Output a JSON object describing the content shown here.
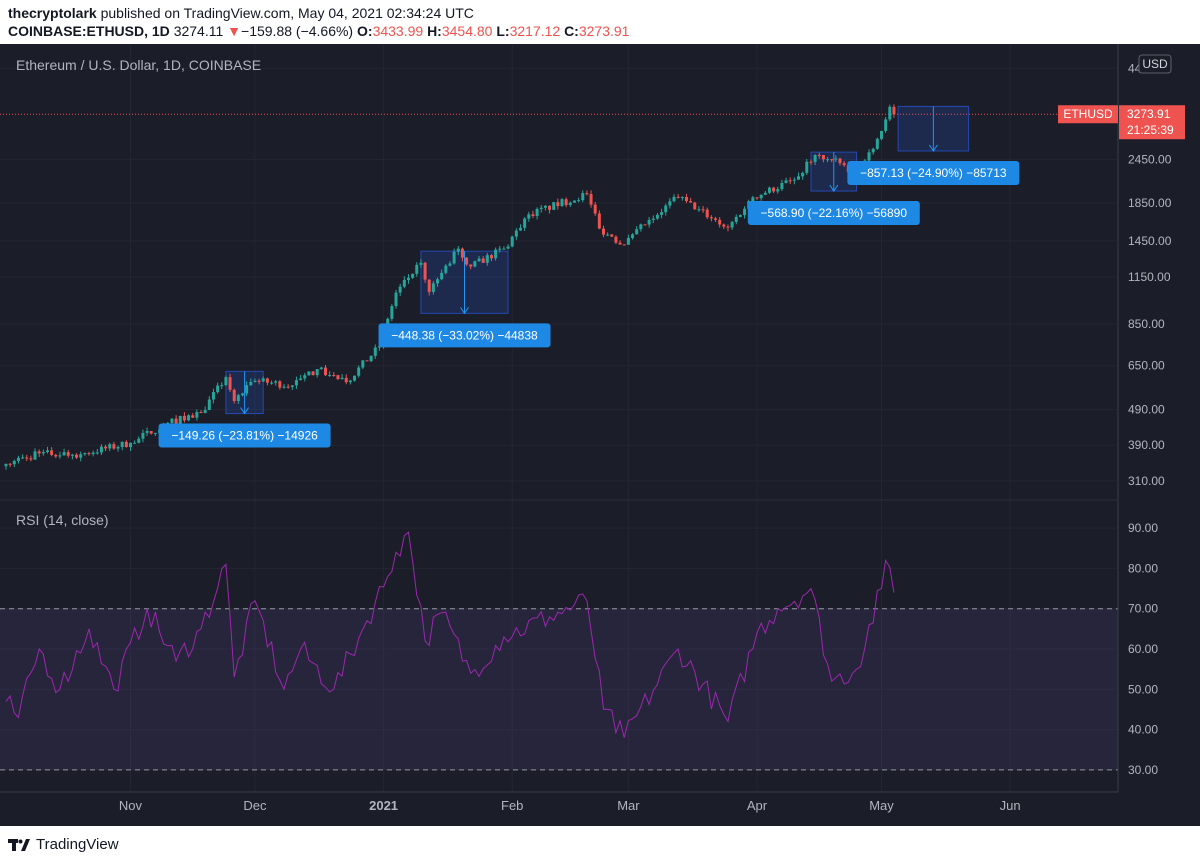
{
  "header": {
    "author": "thecryptolark",
    "published_text": " published on TradingView.com, May 04, 2021 02:34:24 UTC",
    "symbol": "COINBASE:ETHUSD, 1D",
    "last": "3274.11",
    "arrow": "▼",
    "change": "−159.88 (−4.66%)",
    "o_label": "O:",
    "o": "3433.99",
    "h_label": "H:",
    "h": "3454.80",
    "l_label": "L:",
    "l": "3217.12",
    "c_label": "C:",
    "c": "3273.91"
  },
  "footer": {
    "brand": "TradingView"
  },
  "chart_data": [
    {
      "type": "candlestick",
      "title": "Ethereum / U.S. Dollar, 1D, COINBASE",
      "currency": "USD",
      "scale": "log",
      "y_ticks": [
        310,
        390,
        490,
        650,
        850,
        1150,
        1450,
        1850,
        2450,
        4400
      ],
      "y_tick_labels": [
        "310.00",
        "390.00",
        "490.00",
        "650.00",
        "850.00",
        "1150.00",
        "1450.00",
        "1850.00",
        "2450.00",
        "4400.00"
      ],
      "x_labels": [
        "Nov",
        "Dec",
        "2021",
        "Feb",
        "Mar",
        "Apr",
        "May",
        "Jun"
      ],
      "x_label_dates": [
        "2020-11-01",
        "2020-12-01",
        "2021-01-01",
        "2021-02-01",
        "2021-03-01",
        "2021-04-01",
        "2021-05-01",
        "2021-06-01"
      ],
      "date_range": [
        "2020-10-02",
        "2021-06-27"
      ],
      "last_price": {
        "symbol": "ETHUSD",
        "value": "3273.91",
        "countdown": "21:25:39"
      },
      "key_closes": [
        {
          "date": "2020-10-02",
          "close": 346
        },
        {
          "date": "2020-10-10",
          "close": 370
        },
        {
          "date": "2020-10-20",
          "close": 368
        },
        {
          "date": "2020-11-01",
          "close": 396
        },
        {
          "date": "2020-11-10",
          "close": 450
        },
        {
          "date": "2020-11-18",
          "close": 480
        },
        {
          "date": "2020-11-24",
          "close": 604
        },
        {
          "date": "2020-11-26",
          "close": 518
        },
        {
          "date": "2020-12-01",
          "close": 590
        },
        {
          "date": "2020-12-10",
          "close": 573
        },
        {
          "date": "2020-12-16",
          "close": 636
        },
        {
          "date": "2020-12-23",
          "close": 585
        },
        {
          "date": "2020-12-31",
          "close": 737
        },
        {
          "date": "2021-01-04",
          "close": 1040
        },
        {
          "date": "2021-01-10",
          "close": 1260
        },
        {
          "date": "2021-01-12",
          "close": 1045
        },
        {
          "date": "2021-01-19",
          "close": 1380
        },
        {
          "date": "2021-01-22",
          "close": 1230
        },
        {
          "date": "2021-01-30",
          "close": 1380
        },
        {
          "date": "2021-02-05",
          "close": 1720
        },
        {
          "date": "2021-02-19",
          "close": 1960
        },
        {
          "date": "2021-02-22",
          "close": 1570
        },
        {
          "date": "2021-02-28",
          "close": 1415
        },
        {
          "date": "2021-03-06",
          "close": 1660
        },
        {
          "date": "2021-03-13",
          "close": 1920
        },
        {
          "date": "2021-03-25",
          "close": 1580
        },
        {
          "date": "2021-03-31",
          "close": 1919
        },
        {
          "date": "2021-04-10",
          "close": 2150
        },
        {
          "date": "2021-04-15",
          "close": 2520
        },
        {
          "date": "2021-04-22",
          "close": 2360
        },
        {
          "date": "2021-04-25",
          "close": 2220
        },
        {
          "date": "2021-05-01",
          "close": 2940
        },
        {
          "date": "2021-05-03",
          "close": 3434
        },
        {
          "date": "2021-05-04",
          "close": 3274
        }
      ],
      "annotations": [
        {
          "label": "−149.26 (−23.81%) −14926",
          "start": "2020-11-24",
          "end": "2020-12-03",
          "from": 627,
          "to": 478
        },
        {
          "label": "−448.38 (−33.02%) −44838",
          "start": "2021-01-10",
          "end": "2021-01-31",
          "from": 1358,
          "to": 910
        },
        {
          "label": "−568.90 (−22.16%) −56890",
          "start": "2021-04-14",
          "end": "2021-04-25",
          "from": 2567,
          "to": 1998
        },
        {
          "label": "−857.13 (−24.90%) −85713",
          "start": "2021-05-05",
          "end": "2021-05-22",
          "from": 3442,
          "to": 2585
        }
      ]
    },
    {
      "type": "line",
      "title": "RSI (14, close)",
      "y_ticks": [
        30,
        40,
        50,
        60,
        70,
        80,
        90
      ],
      "y_tick_labels": [
        "30.00",
        "40.00",
        "50.00",
        "60.00",
        "70.00",
        "80.00",
        "90.00"
      ],
      "band": [
        30,
        70
      ],
      "color": "#9c27b0",
      "key_values": [
        {
          "date": "2020-10-02",
          "value": 47
        },
        {
          "date": "2020-10-05",
          "value": 43
        },
        {
          "date": "2020-10-10",
          "value": 60
        },
        {
          "date": "2020-10-15",
          "value": 50
        },
        {
          "date": "2020-10-22",
          "value": 65
        },
        {
          "date": "2020-10-28",
          "value": 50
        },
        {
          "date": "2020-11-05",
          "value": 70
        },
        {
          "date": "2020-11-12",
          "value": 57
        },
        {
          "date": "2020-11-18",
          "value": 65
        },
        {
          "date": "2020-11-24",
          "value": 81
        },
        {
          "date": "2020-11-26",
          "value": 53
        },
        {
          "date": "2020-12-01",
          "value": 72
        },
        {
          "date": "2020-12-08",
          "value": 50
        },
        {
          "date": "2020-12-12",
          "value": 60
        },
        {
          "date": "2020-12-20",
          "value": 50
        },
        {
          "date": "2020-12-28",
          "value": 67
        },
        {
          "date": "2021-01-02",
          "value": 78
        },
        {
          "date": "2021-01-04",
          "value": 84
        },
        {
          "date": "2021-01-07",
          "value": 89
        },
        {
          "date": "2021-01-11",
          "value": 62
        },
        {
          "date": "2021-01-15",
          "value": 69
        },
        {
          "date": "2021-01-22",
          "value": 54
        },
        {
          "date": "2021-01-30",
          "value": 63
        },
        {
          "date": "2021-02-10",
          "value": 68
        },
        {
          "date": "2021-02-19",
          "value": 72
        },
        {
          "date": "2021-02-23",
          "value": 45
        },
        {
          "date": "2021-02-28",
          "value": 38
        },
        {
          "date": "2021-03-13",
          "value": 60
        },
        {
          "date": "2021-03-25",
          "value": 42
        },
        {
          "date": "2021-04-01",
          "value": 64
        },
        {
          "date": "2021-04-06",
          "value": 70
        },
        {
          "date": "2021-04-14",
          "value": 75
        },
        {
          "date": "2021-04-19",
          "value": 52
        },
        {
          "date": "2021-04-25",
          "value": 55
        },
        {
          "date": "2021-05-01",
          "value": 75
        },
        {
          "date": "2021-05-02",
          "value": 82
        },
        {
          "date": "2021-05-04",
          "value": 74
        }
      ]
    }
  ]
}
